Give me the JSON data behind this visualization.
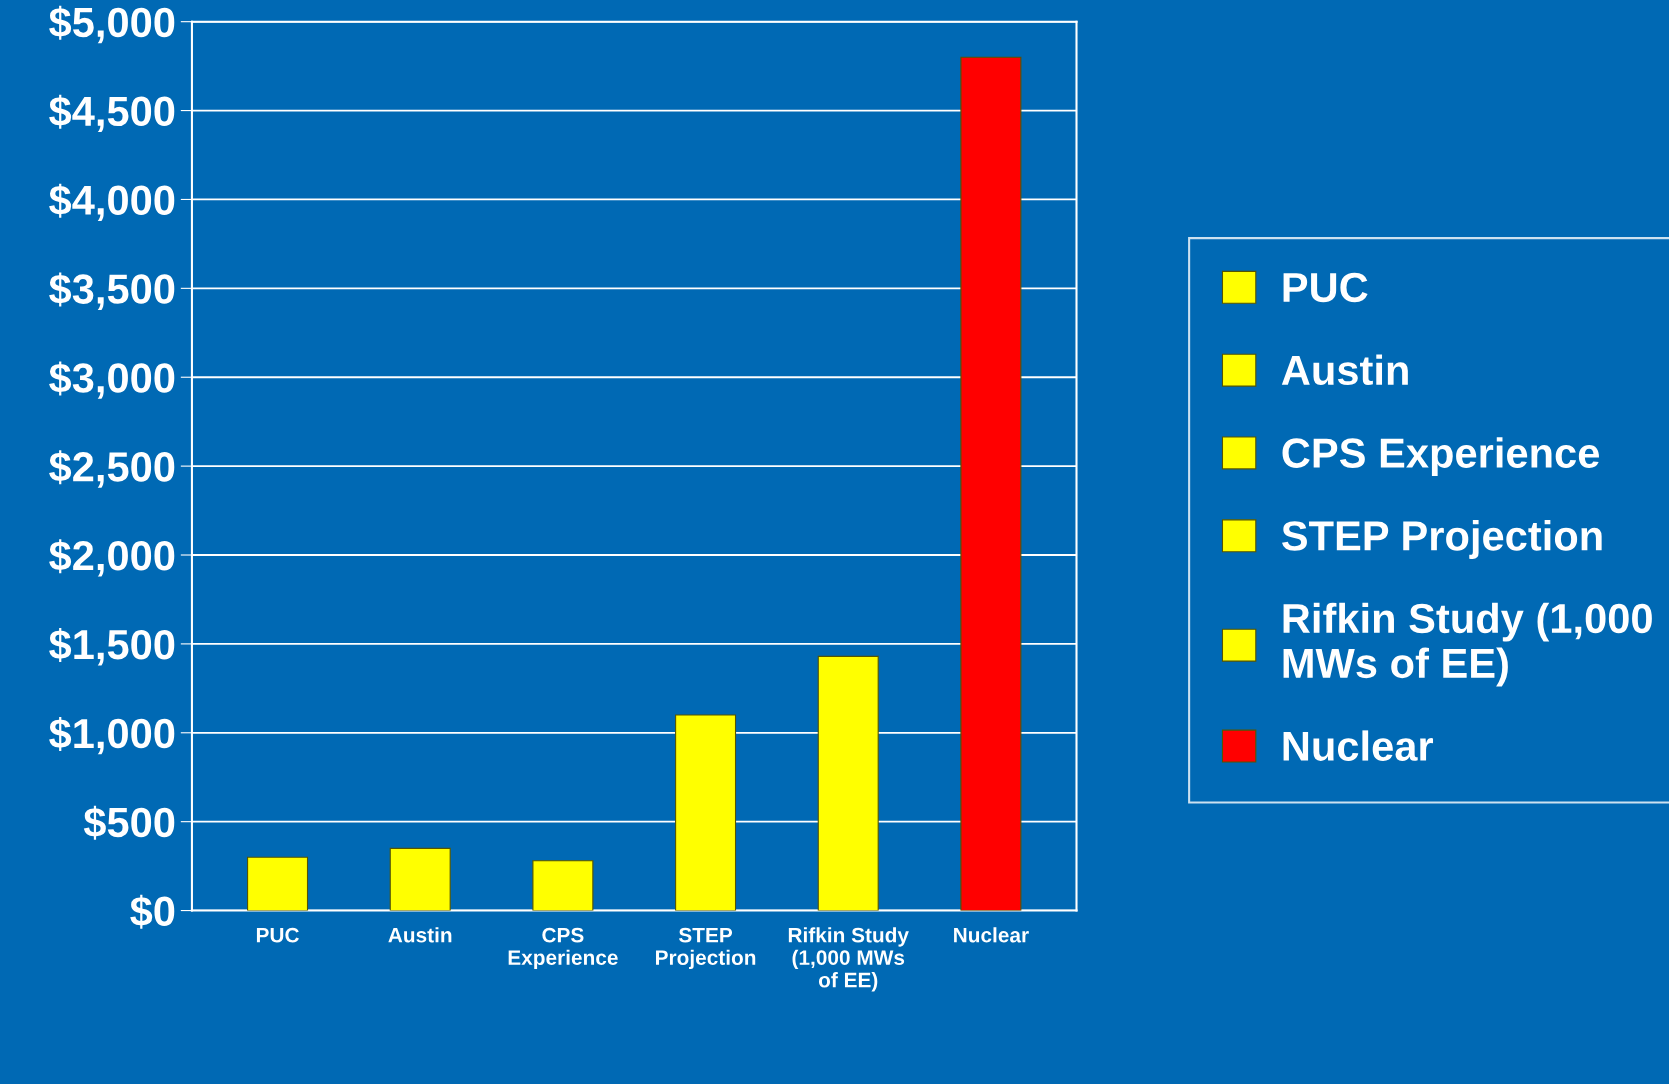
{
  "chart_data": {
    "type": "bar",
    "categories": [
      "PUC",
      "Austin",
      "CPS Experience",
      "STEP Projection",
      "Rifkin Study (1,000 MWs of EE)",
      "Nuclear"
    ],
    "series": [
      {
        "name": "PUC",
        "color": "#ffff00",
        "values": [
          300,
          null,
          null,
          null,
          null,
          null
        ]
      },
      {
        "name": "Austin",
        "color": "#ffff00",
        "values": [
          null,
          350,
          null,
          null,
          null,
          null
        ]
      },
      {
        "name": "CPS Experience",
        "color": "#ffff00",
        "values": [
          null,
          null,
          280,
          null,
          null,
          null
        ]
      },
      {
        "name": "STEP Projection",
        "color": "#ffff00",
        "values": [
          null,
          null,
          null,
          1100,
          null,
          null
        ]
      },
      {
        "name": "Rifkin Study (1,000 MWs of EE)",
        "color": "#ffff00",
        "values": [
          null,
          null,
          null,
          null,
          1430,
          null
        ]
      },
      {
        "name": "Nuclear",
        "color": "#ff0000",
        "values": [
          null,
          null,
          null,
          null,
          null,
          4800
        ]
      }
    ],
    "ylim": [
      0,
      5000
    ],
    "yticks": [
      {
        "value": 0,
        "label": "$0"
      },
      {
        "value": 500,
        "label": "$500"
      },
      {
        "value": 1000,
        "label": "$1,000"
      },
      {
        "value": 1500,
        "label": "$1,500"
      },
      {
        "value": 2000,
        "label": "$2,000"
      },
      {
        "value": 2500,
        "label": "$2,500"
      },
      {
        "value": 3000,
        "label": "$3,000"
      },
      {
        "value": 3500,
        "label": "$3,500"
      },
      {
        "value": 4000,
        "label": "$4,000"
      },
      {
        "value": 4500,
        "label": "$4,500"
      },
      {
        "value": 5000,
        "label": "$5,000"
      }
    ],
    "grid": "y",
    "legend": "right"
  }
}
